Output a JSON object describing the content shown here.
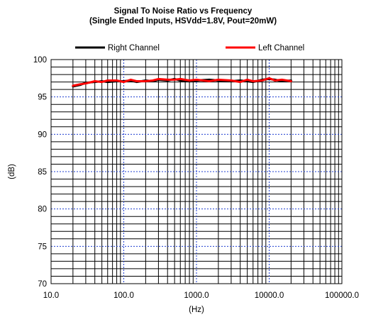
{
  "chart_data": {
    "type": "line",
    "title": "Signal To Noise Ratio vs Frequency",
    "subtitle": "(Single Ended Inputs, HSVdd=1.8V, Pout=20mW)",
    "xlabel": "(Hz)",
    "ylabel": "(dB)",
    "x_scale": "log",
    "xlim": [
      10,
      100000
    ],
    "ylim": [
      70,
      100
    ],
    "x_ticks": [
      10,
      100,
      1000,
      10000,
      100000
    ],
    "x_tick_labels": [
      "10.0",
      "100.0",
      "1000.0",
      "10000.0",
      "100000.0"
    ],
    "y_ticks": [
      70,
      75,
      80,
      85,
      90,
      95,
      100
    ],
    "y_tick_labels": [
      "70",
      "75",
      "80",
      "85",
      "90",
      "95",
      "100"
    ],
    "grid": true,
    "legend": "top",
    "series": [
      {
        "name": "Right Channel",
        "color": "#000000",
        "x": [
          20,
          25,
          30,
          40,
          50,
          60,
          80,
          100,
          125,
          150,
          200,
          250,
          300,
          400,
          500,
          600,
          800,
          1000,
          1500,
          2000,
          3000,
          4000,
          5000,
          6000,
          8000,
          10000,
          12000,
          15000,
          20000
        ],
        "y": [
          96.4,
          96.6,
          96.9,
          97.0,
          97.1,
          97.0,
          97.1,
          97.1,
          97.2,
          97.0,
          97.2,
          97.1,
          97.3,
          97.2,
          97.4,
          97.2,
          97.1,
          97.2,
          97.3,
          97.2,
          97.1,
          97.2,
          97.1,
          97.0,
          97.3,
          97.4,
          97.3,
          97.1,
          97.2
        ]
      },
      {
        "name": "Left Channel",
        "color": "#ff0000",
        "x": [
          20,
          25,
          30,
          40,
          50,
          60,
          80,
          100,
          125,
          150,
          200,
          250,
          300,
          400,
          500,
          600,
          800,
          1000,
          1500,
          2000,
          3000,
          4000,
          5000,
          6000,
          8000,
          10000,
          12000,
          15000,
          20000
        ],
        "y": [
          96.5,
          96.7,
          96.8,
          97.1,
          97.0,
          97.2,
          97.2,
          97.0,
          97.3,
          97.1,
          97.1,
          97.2,
          97.4,
          97.3,
          97.3,
          97.4,
          97.2,
          97.3,
          97.1,
          97.3,
          97.2,
          97.0,
          97.3,
          97.1,
          97.2,
          97.5,
          97.2,
          97.3,
          97.1
        ]
      }
    ]
  }
}
